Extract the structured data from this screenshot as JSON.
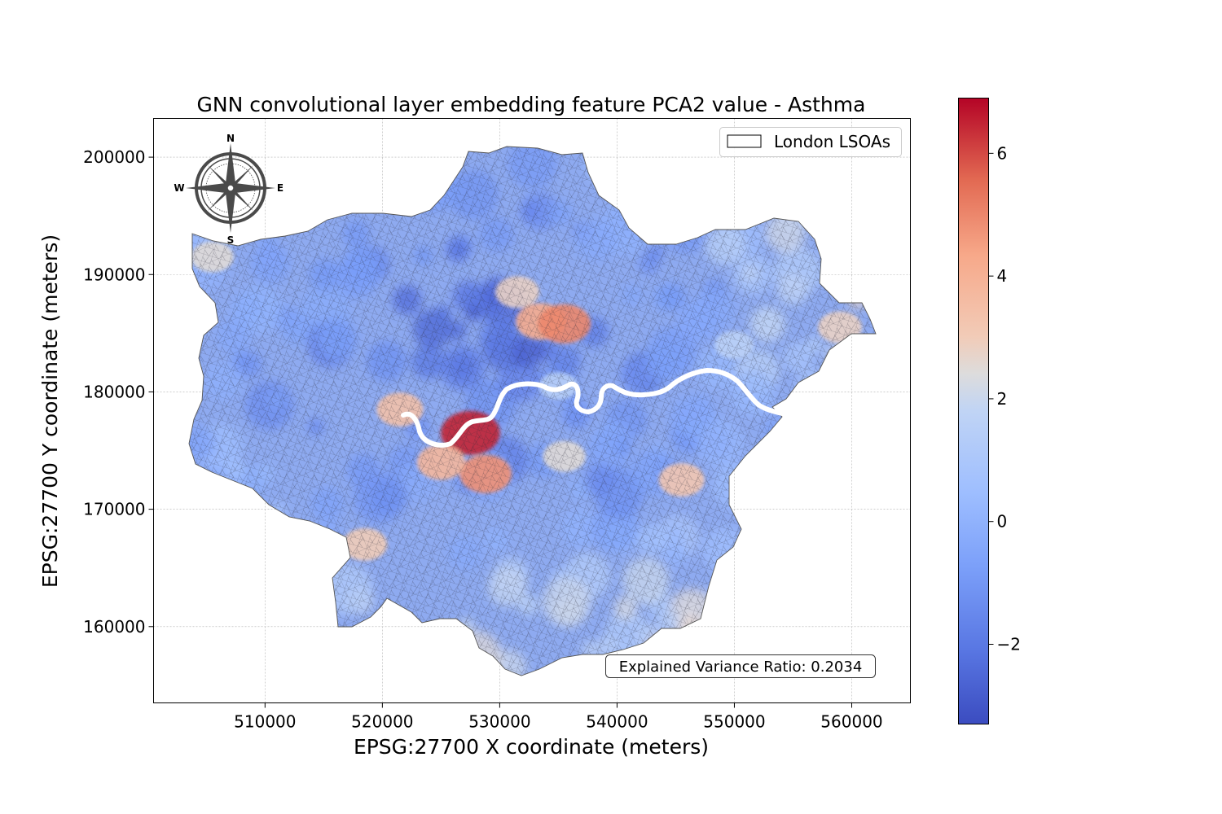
{
  "title": "GNN convolutional layer embedding feature PCA2 value - Asthma",
  "xlabel": "EPSG:27700 X coordinate (meters)",
  "ylabel": "EPSG:27700 Y coordinate (meters)",
  "legend_label": "London LSOAs",
  "annotation": "Explained Variance Ratio: 0.2034",
  "compass": {
    "n": "N",
    "s": "S",
    "e": "E",
    "w": "W"
  },
  "chart_data": {
    "type": "choropleth",
    "title": "GNN convolutional layer embedding feature PCA2 value - Asthma",
    "xlim": [
      500500,
      565000
    ],
    "ylim": [
      153500,
      203300
    ],
    "x_ticks": [
      510000,
      520000,
      530000,
      540000,
      550000,
      560000
    ],
    "y_ticks": [
      160000,
      170000,
      180000,
      190000,
      200000
    ],
    "x_tick_labels": [
      "510000",
      "520000",
      "530000",
      "540000",
      "550000",
      "560000"
    ],
    "y_tick_labels": [
      "160000",
      "170000",
      "180000",
      "190000",
      "200000"
    ],
    "grid": true,
    "legend_position": "top-right",
    "colormap": "coolwarm",
    "colorbar": {
      "range": [
        -3.3,
        6.9
      ],
      "ticks": [
        -2,
        0,
        2,
        4,
        6
      ],
      "tick_labels": [
        "−2",
        "0",
        "2",
        "4",
        "6"
      ]
    },
    "hotspots": [
      {
        "x": 527500,
        "y": 176500,
        "value": 6.5
      },
      {
        "x": 528800,
        "y": 173000,
        "value": 4.8
      },
      {
        "x": 525000,
        "y": 174000,
        "value": 3.8
      },
      {
        "x": 521500,
        "y": 178500,
        "value": 3.4
      },
      {
        "x": 533500,
        "y": 186000,
        "value": 4.2
      },
      {
        "x": 535500,
        "y": 185800,
        "value": 5.0
      },
      {
        "x": 545500,
        "y": 172500,
        "value": 3.2
      },
      {
        "x": 559000,
        "y": 185500,
        "value": 2.8
      },
      {
        "x": 518500,
        "y": 167000,
        "value": 3.0
      },
      {
        "x": 505500,
        "y": 191500,
        "value": 2.5
      },
      {
        "x": 550000,
        "y": 184000,
        "value": 1.6
      },
      {
        "x": 535000,
        "y": 180500,
        "value": 1.5
      },
      {
        "x": 535500,
        "y": 174500,
        "value": 2.5
      },
      {
        "x": 531500,
        "y": 188500,
        "value": 2.8
      }
    ]
  },
  "colors": {
    "cmap_low": "#3b4cc0",
    "cmap_mid": "#dddddd",
    "cmap_high": "#b40426",
    "river": "#ffffff",
    "boundary": "#333333"
  }
}
